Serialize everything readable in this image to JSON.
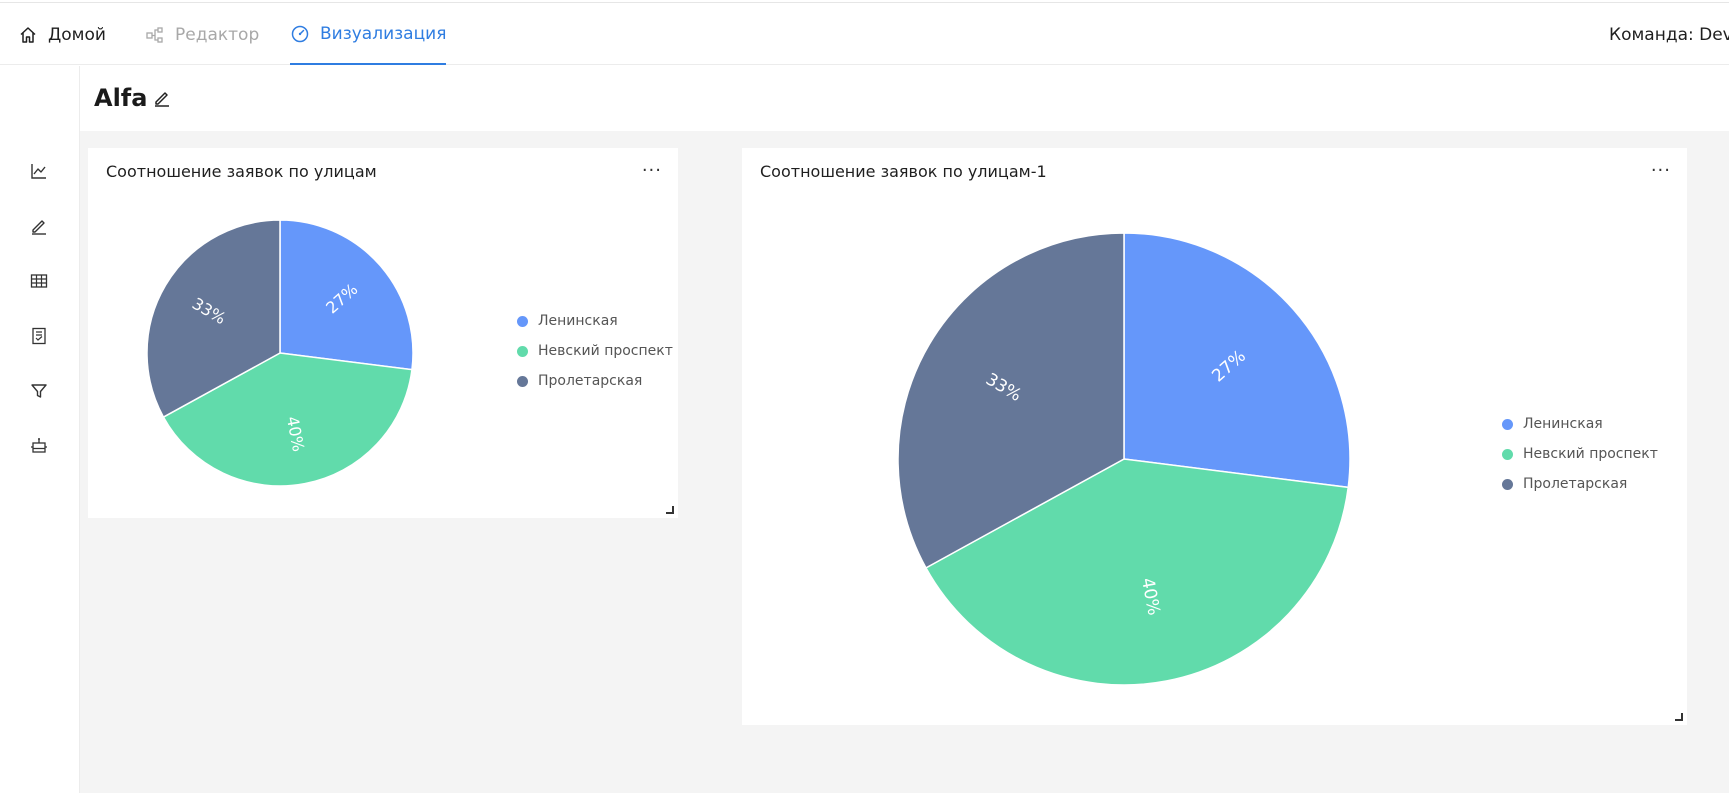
{
  "nav": {
    "home_label": "Домой",
    "editor_label": "Редактор",
    "viz_label": "Визуализация",
    "team_label": "Команда: Devel"
  },
  "sidebar": {
    "items": [
      {
        "icon": "line-chart-icon"
      },
      {
        "icon": "pencil-icon"
      },
      {
        "icon": "table-icon"
      },
      {
        "icon": "report-icon"
      },
      {
        "icon": "filter-icon"
      },
      {
        "icon": "robot-icon"
      }
    ]
  },
  "dashboard": {
    "title": "Alfa"
  },
  "colors": {
    "accent": "#2f7de1",
    "series": [
      "#6597fa",
      "#61dbab",
      "#657798"
    ]
  },
  "chart_data": [
    {
      "type": "pie",
      "title": "Соотношение заявок по улицам",
      "categories": [
        "Ленинская",
        "Невский проспект",
        "Пролетарская"
      ],
      "values": [
        27,
        40,
        33
      ],
      "labels": [
        "27%",
        "40%",
        "33%"
      ],
      "legend_position": "right"
    },
    {
      "type": "pie",
      "title": "Соотношение заявок по улицам-1",
      "categories": [
        "Ленинская",
        "Невский проспект",
        "Пролетарская"
      ],
      "values": [
        27,
        40,
        33
      ],
      "labels": [
        "27%",
        "40%",
        "33%"
      ],
      "legend_position": "right"
    }
  ],
  "card_menu_label": "..."
}
